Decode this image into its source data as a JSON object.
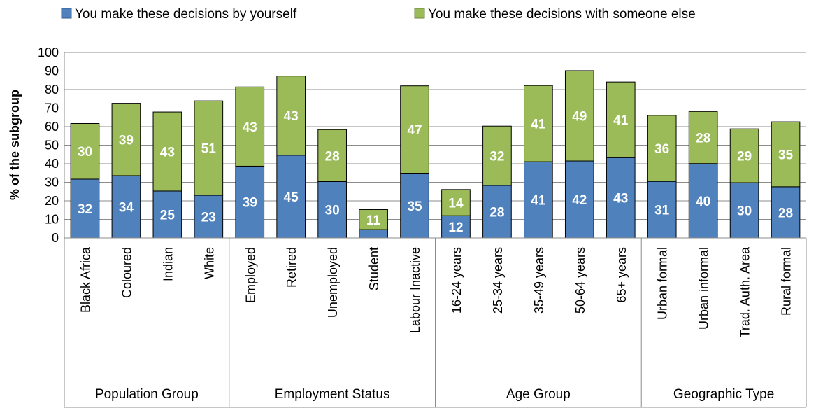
{
  "chart_data": {
    "type": "bar",
    "stacked": true,
    "title": "",
    "xlabel": "",
    "ylabel": "% of the subgroup",
    "ylim": [
      0,
      100
    ],
    "yticks": [
      0,
      10,
      20,
      30,
      40,
      50,
      60,
      70,
      80,
      90,
      100
    ],
    "grid": true,
    "legend_position": "top",
    "categories": [
      "Black Africa",
      "Coloured",
      "Indian",
      "White",
      "Employed",
      "Retired",
      "Unemployed",
      "Student",
      "Labour Inactive",
      "16-24 years",
      "25-34 years",
      "35-49 years",
      "50-64 years",
      "65+ years",
      "Urban formal",
      "Urban informal",
      "Trad. Auth. Area",
      "Rural formal"
    ],
    "groups": [
      {
        "label": "Population Group",
        "count": 4
      },
      {
        "label": "Employment Status",
        "count": 5
      },
      {
        "label": "Age Group",
        "count": 5
      },
      {
        "label": "Geographic Type",
        "count": 4
      }
    ],
    "series": [
      {
        "name": "You make these decisions by yourself",
        "color": "#4F81BD",
        "values": [
          31.7,
          33.6,
          25.3,
          23.0,
          38.7,
          44.6,
          30.4,
          4.5,
          34.9,
          12.0,
          28.3,
          41.1,
          41.5,
          43.3,
          30.5,
          40.1,
          29.8,
          27.6
        ],
        "labels": [
          "32",
          "34",
          "25",
          "23",
          "39",
          "45",
          "30",
          "",
          "35",
          "12",
          "28",
          "41",
          "42",
          "43",
          "31",
          "40",
          "30",
          "28"
        ]
      },
      {
        "name": "You make these decisions with someone else",
        "color": "#9BBB59",
        "values": [
          30.0,
          39.0,
          42.6,
          50.9,
          42.7,
          42.7,
          28.0,
          10.8,
          47.1,
          14.1,
          32.0,
          41.1,
          48.7,
          40.8,
          35.6,
          28.1,
          29.0,
          35.0
        ],
        "labels": [
          "30",
          "39",
          "43",
          "51",
          "43",
          "43",
          "28",
          "11",
          "47",
          "14",
          "32",
          "41",
          "49",
          "41",
          "36",
          "28",
          "29",
          "35"
        ]
      }
    ]
  }
}
